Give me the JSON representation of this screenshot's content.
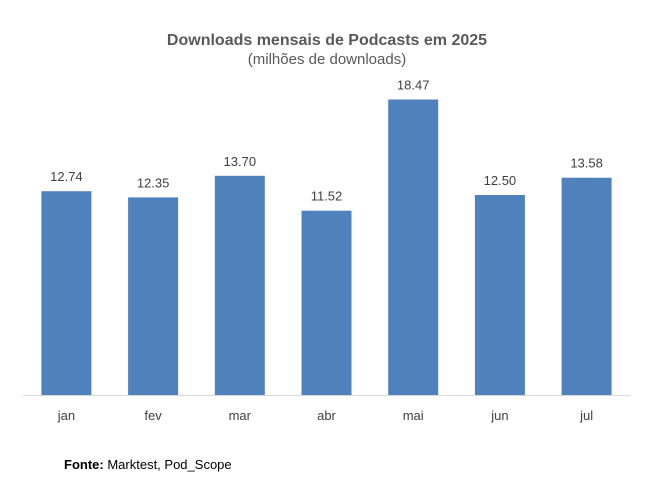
{
  "chart_data": {
    "type": "bar",
    "title": "Downloads mensais de Podcasts em 2025",
    "subtitle": "(milhões de downloads)",
    "categories": [
      "jan",
      "fev",
      "mar",
      "abr",
      "mai",
      "jun",
      "jul"
    ],
    "values": [
      12.74,
      12.35,
      13.7,
      11.52,
      18.47,
      12.5,
      13.58
    ],
    "value_labels": [
      "12.74",
      "12.35",
      "13.70",
      "11.52",
      "18.47",
      "12.50",
      "13.58"
    ],
    "xlabel": "",
    "ylabel": "",
    "ylim": [
      0,
      20
    ],
    "grid": false,
    "legend": "none",
    "bar_color": "#4F81BD",
    "baseline_color": "#D9D9D9"
  },
  "source": {
    "prefix": "Fonte:",
    "text": "Marktest, Pod_Scope"
  }
}
